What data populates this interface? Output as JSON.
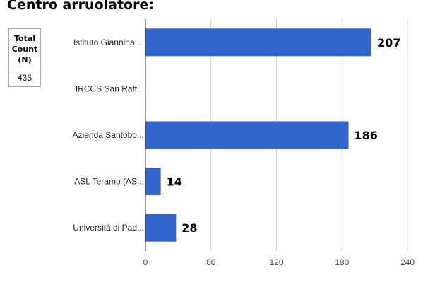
{
  "title": "Centro arruolatore:",
  "summary": {
    "header": "Total\nCount\n(N)",
    "value": "435"
  },
  "colors": {
    "bar": "#3366cc",
    "grid": "#cccccc",
    "axis": "#333333"
  },
  "chart_data": {
    "type": "bar",
    "orientation": "horizontal",
    "title": "Centro arruolatore:",
    "categories": [
      "Istituto Giannina ...",
      "IRCCS San Raff...",
      "Azienda Santobo...",
      "ASL Teramo (AS...",
      "Università di Pad..."
    ],
    "values": [
      207,
      0,
      186,
      14,
      28
    ],
    "data_labels": [
      "207",
      "",
      "186",
      "14",
      "28"
    ],
    "xlim": [
      0,
      240
    ],
    "xticks": [
      0,
      60,
      120,
      180,
      240
    ],
    "grid": true,
    "legend": "none"
  }
}
